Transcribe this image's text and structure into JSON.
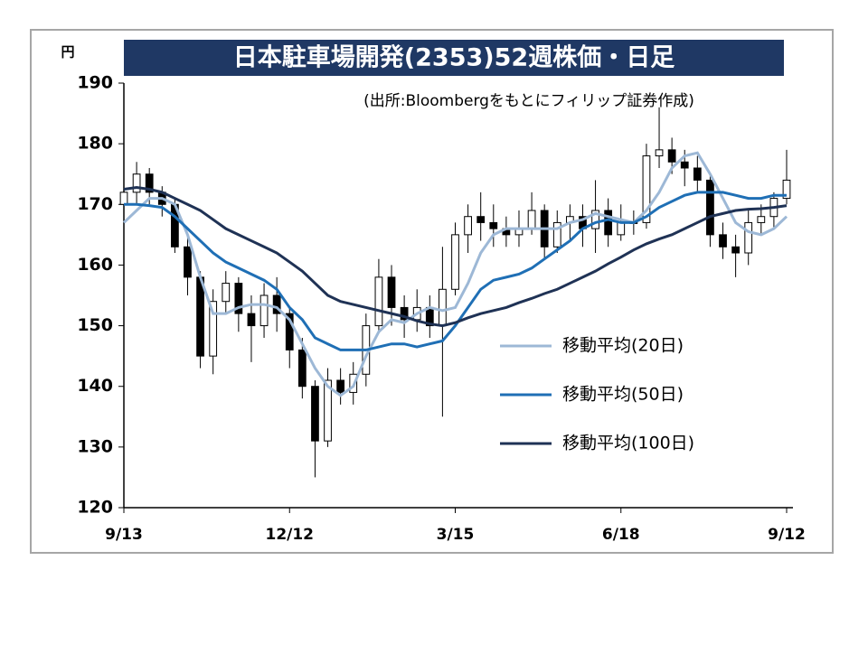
{
  "chart_data": {
    "type": "candlestick",
    "title": "日本駐車場開発(2353)52週株価・日足",
    "y_unit": "円",
    "annotation": "(出所:Bloombergをもとにフィリップ証券作成)",
    "categories": [
      "9/13",
      null,
      null,
      null,
      null,
      null,
      null,
      null,
      null,
      null,
      null,
      null,
      null,
      "12/12",
      null,
      null,
      null,
      null,
      null,
      null,
      null,
      null,
      null,
      null,
      null,
      null,
      "3/15",
      null,
      null,
      null,
      null,
      null,
      null,
      null,
      null,
      null,
      null,
      null,
      null,
      "6/18",
      null,
      null,
      null,
      null,
      null,
      null,
      null,
      null,
      null,
      null,
      null,
      null,
      "9/12"
    ],
    "open": [
      170,
      172,
      175,
      172,
      170,
      163,
      158,
      145,
      154,
      157,
      152,
      150,
      155,
      152,
      146,
      140,
      131,
      141,
      139,
      142,
      150,
      158,
      153,
      151,
      153,
      150,
      156,
      165,
      168,
      167,
      166,
      165,
      166,
      169,
      163,
      167,
      168,
      166,
      169,
      165,
      167,
      167,
      178,
      179,
      177,
      176,
      174,
      165,
      163,
      162,
      167,
      168,
      171
    ],
    "high": [
      173,
      177,
      176,
      173,
      171,
      165,
      159,
      156,
      159,
      158,
      155,
      157,
      158,
      153,
      148,
      141,
      143,
      143,
      144,
      152,
      161,
      160,
      155,
      156,
      155,
      163,
      167,
      170,
      172,
      170,
      168,
      169,
      172,
      170,
      169,
      170,
      170,
      174,
      171,
      170,
      169,
      180,
      186,
      181,
      179,
      178,
      175,
      167,
      165,
      169,
      170,
      172,
      179
    ],
    "low": [
      168,
      170,
      170,
      168,
      162,
      155,
      143,
      142,
      152,
      149,
      144,
      148,
      149,
      143,
      138,
      125,
      130,
      137,
      137,
      140,
      149,
      150,
      148,
      149,
      148,
      135,
      155,
      162,
      164,
      163,
      163,
      163,
      165,
      161,
      162,
      164,
      163,
      162,
      163,
      164,
      165,
      166,
      176,
      175,
      173,
      172,
      163,
      161,
      158,
      160,
      165,
      166,
      170
    ],
    "close": [
      172,
      175,
      172,
      170,
      163,
      158,
      145,
      154,
      157,
      152,
      150,
      155,
      152,
      146,
      140,
      131,
      141,
      139,
      142,
      150,
      158,
      153,
      151,
      153,
      150,
      156,
      165,
      168,
      167,
      166,
      165,
      166,
      169,
      163,
      167,
      168,
      166,
      169,
      165,
      167,
      167,
      178,
      179,
      177,
      176,
      174,
      165,
      163,
      162,
      167,
      168,
      171,
      174
    ],
    "series": [
      {
        "name": "移動平均(20日)",
        "color": "#9db8d6",
        "values": [
          167,
          169,
          171,
          171,
          170,
          165,
          158,
          152,
          152,
          153,
          153.5,
          153.5,
          153,
          151,
          147,
          143,
          140,
          138.5,
          140,
          145,
          149,
          151,
          150.5,
          152,
          153,
          152.5,
          153,
          157,
          162,
          165,
          166,
          166,
          166,
          166,
          166,
          167,
          167.5,
          168.5,
          168,
          167.5,
          167,
          169,
          172,
          176,
          178,
          178.5,
          175,
          171,
          167,
          165.5,
          165,
          166,
          168
        ]
      },
      {
        "name": "移動平均(50日)",
        "color": "#1f6fb5",
        "values": [
          170,
          170,
          169.8,
          169.5,
          168,
          166,
          164,
          162,
          160.5,
          159.5,
          158.5,
          157.5,
          156,
          153,
          151,
          148,
          147,
          146,
          146,
          146,
          146.5,
          147,
          147,
          146.5,
          147,
          147.5,
          150,
          153,
          156,
          157.5,
          158,
          158.5,
          159.5,
          161,
          162.5,
          164,
          166,
          167,
          167.5,
          167,
          167,
          168,
          169.5,
          170.5,
          171.5,
          172,
          172,
          172,
          171.5,
          171,
          171,
          171.5,
          171.5
        ]
      },
      {
        "name": "移動平均(100日)",
        "color": "#1f3255",
        "values": [
          172.5,
          172.8,
          172.5,
          172,
          171,
          170,
          169,
          167.5,
          166,
          165,
          164,
          163,
          162,
          160.5,
          159,
          157,
          155,
          154,
          153.5,
          153,
          152.5,
          152,
          151.5,
          150.8,
          150.3,
          150,
          150.5,
          151.3,
          152,
          152.5,
          153,
          153.8,
          154.5,
          155.3,
          156,
          157,
          158,
          159,
          160.2,
          161.3,
          162.5,
          163.5,
          164.3,
          165,
          166,
          167,
          168,
          168.5,
          169,
          169.2,
          169.3,
          169.5,
          169.8
        ]
      }
    ],
    "ylim": [
      120,
      190
    ],
    "yticks": [
      120,
      130,
      140,
      150,
      160,
      170,
      180,
      190
    ],
    "up_color": "#ffffff",
    "down_color": "#000000"
  }
}
